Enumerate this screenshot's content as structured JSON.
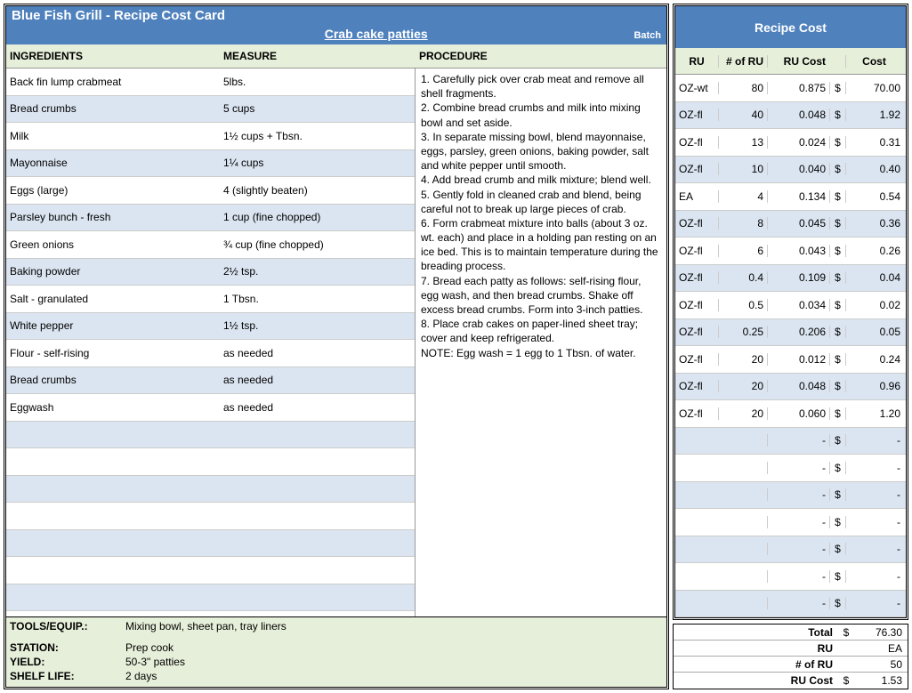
{
  "header": {
    "title": "Blue Fish Grill - Recipe Cost Card",
    "recipe_name": "Crab cake patties",
    "batch_label": "Batch"
  },
  "columns": {
    "ingredients": "INGREDIENTS",
    "measure": "MEASURE",
    "procedure": "PROCEDURE"
  },
  "ingredients": [
    {
      "name": "Back fin lump crabmeat",
      "measure": "5lbs."
    },
    {
      "name": "Bread crumbs",
      "measure": "5 cups"
    },
    {
      "name": "Milk",
      "measure": "1½ cups + Tbsn."
    },
    {
      "name": "Mayonnaise",
      "measure": "1¼ cups"
    },
    {
      "name": "Eggs (large)",
      "measure": "4 (slightly beaten)"
    },
    {
      "name": "Parsley bunch - fresh",
      "measure": "1 cup (fine chopped)"
    },
    {
      "name": "Green onions",
      "measure": "¾ cup (fine chopped)"
    },
    {
      "name": "Baking powder",
      "measure": "2½ tsp."
    },
    {
      "name": "Salt - granulated",
      "measure": "1 Tbsn."
    },
    {
      "name": "White pepper",
      "measure": "1½ tsp."
    },
    {
      "name": "Flour - self-rising",
      "measure": "as needed"
    },
    {
      "name": "Bread crumbs",
      "measure": "as needed"
    },
    {
      "name": "Eggwash",
      "measure": "as needed"
    },
    {
      "name": "",
      "measure": ""
    },
    {
      "name": "",
      "measure": ""
    },
    {
      "name": "",
      "measure": ""
    },
    {
      "name": "",
      "measure": ""
    },
    {
      "name": "",
      "measure": ""
    },
    {
      "name": "",
      "measure": ""
    },
    {
      "name": "",
      "measure": ""
    }
  ],
  "procedure_lines": [
    "1. Carefully pick over crab meat and remove all shell fragments.",
    "2. Combine bread crumbs and milk into mixing bowl and set aside.",
    "3. In separate missing bowl, blend mayonnaise, eggs, parsley, green onions, baking powder, salt and white pepper until smooth.",
    "4. Add bread crumb and milk mixture; blend well.",
    "5. Gently fold in cleaned crab and blend, being careful not to break up large pieces of crab.",
    "6. Form crabmeat mixture into balls (about 3 oz. wt. each) and place in a holding pan resting on an ice bed. This is to maintain temperature during the breading process.",
    "7. Bread each patty as follows: self-rising flour, egg wash, and then bread crumbs. Shake off excess bread crumbs. Form into 3-inch patties.",
    "8. Place crab cakes on paper-lined sheet tray; cover and keep refrigerated.",
    "NOTE: Egg wash = 1 egg to 1 Tbsn. of water."
  ],
  "footer": {
    "tools_label": "TOOLS/EQUIP.:",
    "tools_value": "Mixing bowl, sheet pan, tray liners",
    "station_label": "STATION:",
    "station_value": "Prep cook",
    "yield_label": "YIELD:",
    "yield_value": "50-3\" patties",
    "shelf_label": "SHELF LIFE:",
    "shelf_value": "2 days"
  },
  "right": {
    "title": "Recipe Cost",
    "columns": {
      "ru": "RU",
      "num_ru": "# of RU",
      "ru_cost": "RU Cost",
      "cost": "Cost"
    },
    "rows": [
      {
        "ru": "OZ-wt",
        "num": "80",
        "rucost": "0.875",
        "cur": "$",
        "cost": "70.00"
      },
      {
        "ru": "OZ-fl",
        "num": "40",
        "rucost": "0.048",
        "cur": "$",
        "cost": "1.92"
      },
      {
        "ru": "OZ-fl",
        "num": "13",
        "rucost": "0.024",
        "cur": "$",
        "cost": "0.31"
      },
      {
        "ru": "OZ-fl",
        "num": "10",
        "rucost": "0.040",
        "cur": "$",
        "cost": "0.40"
      },
      {
        "ru": "EA",
        "num": "4",
        "rucost": "0.134",
        "cur": "$",
        "cost": "0.54"
      },
      {
        "ru": "OZ-fl",
        "num": "8",
        "rucost": "0.045",
        "cur": "$",
        "cost": "0.36"
      },
      {
        "ru": "OZ-fl",
        "num": "6",
        "rucost": "0.043",
        "cur": "$",
        "cost": "0.26"
      },
      {
        "ru": "OZ-fl",
        "num": "0.4",
        "rucost": "0.109",
        "cur": "$",
        "cost": "0.04"
      },
      {
        "ru": "OZ-fl",
        "num": "0.5",
        "rucost": "0.034",
        "cur": "$",
        "cost": "0.02"
      },
      {
        "ru": "OZ-fl",
        "num": "0.25",
        "rucost": "0.206",
        "cur": "$",
        "cost": "0.05"
      },
      {
        "ru": "OZ-fl",
        "num": "20",
        "rucost": "0.012",
        "cur": "$",
        "cost": "0.24"
      },
      {
        "ru": "OZ-fl",
        "num": "20",
        "rucost": "0.048",
        "cur": "$",
        "cost": "0.96"
      },
      {
        "ru": "OZ-fl",
        "num": "20",
        "rucost": "0.060",
        "cur": "$",
        "cost": "1.20"
      },
      {
        "ru": "",
        "num": "",
        "rucost": "-",
        "cur": "$",
        "cost": "-"
      },
      {
        "ru": "",
        "num": "",
        "rucost": "-",
        "cur": "$",
        "cost": "-"
      },
      {
        "ru": "",
        "num": "",
        "rucost": "-",
        "cur": "$",
        "cost": "-"
      },
      {
        "ru": "",
        "num": "",
        "rucost": "-",
        "cur": "$",
        "cost": "-"
      },
      {
        "ru": "",
        "num": "",
        "rucost": "-",
        "cur": "$",
        "cost": "-"
      },
      {
        "ru": "",
        "num": "",
        "rucost": "-",
        "cur": "$",
        "cost": "-"
      },
      {
        "ru": "",
        "num": "",
        "rucost": "-",
        "cur": "$",
        "cost": "-"
      }
    ],
    "totals": [
      {
        "label": "Total",
        "cur": "$",
        "val": "76.30"
      },
      {
        "label": "RU",
        "cur": "",
        "val": "EA"
      },
      {
        "label": "# of RU",
        "cur": "",
        "val": "50"
      },
      {
        "label": "RU Cost",
        "cur": "$",
        "val": "1.53"
      }
    ]
  },
  "colors": {
    "header_bg": "#4f81bd",
    "band_alt": "#dbe5f1",
    "green_bg": "#e6efd9"
  }
}
